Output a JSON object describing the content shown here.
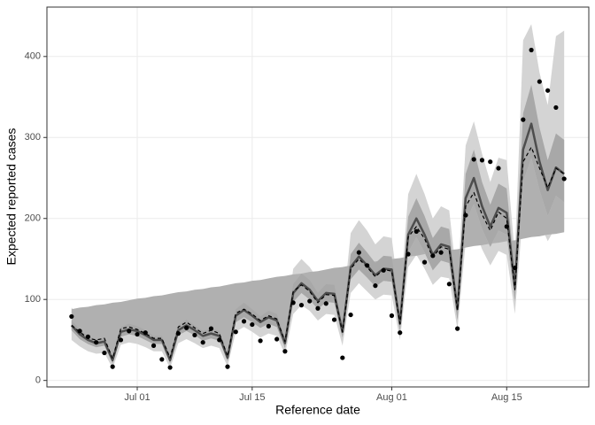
{
  "chart_data": {
    "type": "line",
    "x_label": "Reference date",
    "y_label": "Expected reported cases",
    "x": [
      "06-23",
      "06-24",
      "06-25",
      "06-26",
      "06-27",
      "06-28",
      "06-29",
      "06-30",
      "07-01",
      "07-02",
      "07-03",
      "07-04",
      "07-05",
      "07-06",
      "07-07",
      "07-08",
      "07-09",
      "07-10",
      "07-11",
      "07-12",
      "07-13",
      "07-14",
      "07-15",
      "07-16",
      "07-17",
      "07-18",
      "07-19",
      "07-20",
      "07-21",
      "07-22",
      "07-23",
      "07-24",
      "07-25",
      "07-26",
      "07-27",
      "07-28",
      "07-29",
      "07-30",
      "07-31",
      "08-01",
      "08-02",
      "08-03",
      "08-04",
      "08-05",
      "08-06",
      "08-07",
      "08-08",
      "08-09",
      "08-10",
      "08-11",
      "08-12",
      "08-13",
      "08-14",
      "08-15",
      "08-16",
      "08-17",
      "08-18",
      "08-19",
      "08-20",
      "08-21",
      "08-22"
    ],
    "xlim": [
      "06-20",
      "08-25"
    ],
    "xticks": [
      {
        "value": "07-01",
        "label": "Jul 01"
      },
      {
        "value": "07-15",
        "label": "Jul 15"
      },
      {
        "value": "08-01",
        "label": "Aug 01"
      },
      {
        "value": "08-15",
        "label": "Aug 15"
      }
    ],
    "ylim": [
      -8,
      461
    ],
    "yticks": [
      0,
      100,
      200,
      300,
      400
    ],
    "grid": true,
    "bands": [
      {
        "color": "#d4d4d4",
        "lower": [
          50,
          42,
          36,
          33,
          34,
          15,
          44,
          47,
          45,
          41,
          36,
          36,
          15,
          46,
          51,
          46,
          40,
          43,
          40,
          17,
          60,
          66,
          60,
          53,
          58,
          55,
          32,
          82,
          93,
          86,
          74,
          82,
          81,
          43,
          108,
          120,
          110,
          100,
          106,
          105,
          50,
          140,
          155,
          138,
          118,
          128,
          126,
          63,
          170,
          190,
          162,
          142,
          160,
          155,
          82,
          210,
          230,
          195,
          172,
          190,
          185
        ],
        "upper": [
          90,
          78,
          68,
          64,
          66,
          38,
          80,
          84,
          80,
          74,
          67,
          67,
          38,
          82,
          88,
          82,
          74,
          78,
          74,
          42,
          104,
          112,
          104,
          95,
          102,
          97,
          65,
          138,
          150,
          140,
          125,
          136,
          134,
          82,
          182,
          198,
          185,
          168,
          178,
          176,
          95,
          230,
          255,
          230,
          200,
          215,
          210,
          118,
          290,
          320,
          280,
          245,
          275,
          272,
          155,
          420,
          440,
          380,
          340,
          425,
          432
        ]
      },
      {
        "color": "#a8a8a8",
        "lower": [
          62,
          51,
          45,
          41,
          43,
          21,
          54,
          57,
          55,
          50,
          45,
          45,
          21,
          56,
          61,
          56,
          49,
          52,
          49,
          24,
          72,
          78,
          72,
          65,
          70,
          66,
          40,
          97,
          108,
          100,
          88,
          97,
          96,
          53,
          125,
          137,
          127,
          116,
          123,
          122,
          61,
          158,
          177,
          158,
          136,
          148,
          145,
          75,
          196,
          218,
          187,
          165,
          185,
          180,
          98,
          245,
          275,
          235,
          203,
          228,
          220
        ],
        "upper": [
          74,
          63,
          55,
          51,
          53,
          29,
          66,
          70,
          67,
          62,
          55,
          55,
          29,
          68,
          75,
          68,
          61,
          64,
          61,
          32,
          88,
          96,
          88,
          79,
          86,
          82,
          52,
          119,
          132,
          124,
          108,
          119,
          118,
          67,
          156,
          170,
          158,
          145,
          154,
          153,
          79,
          202,
          225,
          203,
          176,
          190,
          187,
          100,
          255,
          285,
          245,
          217,
          243,
          237,
          132,
          330,
          365,
          312,
          272,
          305,
          297
        ]
      }
    ],
    "trend": {
      "color": "#b0b0b0",
      "values": [
        88,
        90,
        91,
        93,
        94,
        96,
        97,
        99,
        101,
        102,
        104,
        105,
        107,
        109,
        110,
        112,
        113,
        115,
        116,
        118,
        120,
        121,
        123,
        124,
        126,
        128,
        129,
        131,
        132,
        134,
        135,
        137,
        139,
        140,
        142,
        143,
        145,
        147,
        148,
        150,
        151,
        153,
        154,
        156,
        158,
        159,
        161,
        162,
        164,
        166,
        167,
        169,
        170,
        172,
        173,
        175,
        177,
        178,
        180,
        181,
        183
      ]
    },
    "series": [
      {
        "style": "solid",
        "color": "#4d4d4d",
        "values": [
          68,
          57,
          50,
          46,
          48,
          25,
          60,
          63,
          61,
          56,
          50,
          50,
          25,
          62,
          68,
          62,
          55,
          58,
          55,
          28,
          80,
          87,
          80,
          72,
          78,
          74,
          46,
          108,
          120,
          112,
          98,
          108,
          107,
          60,
          140,
          153,
          142,
          130,
          138,
          137,
          70,
          180,
          200,
          180,
          155,
          168,
          165,
          88,
          225,
          250,
          215,
          190,
          213,
          207,
          115,
          285,
          317,
          270,
          235,
          263,
          255
        ]
      },
      {
        "style": "dashed",
        "color": "#000000",
        "values": [
          68,
          60,
          52,
          50,
          52,
          27,
          64,
          66,
          63,
          58,
          52,
          52,
          28,
          66,
          72,
          65,
          58,
          62,
          58,
          30,
          83,
          88,
          82,
          74,
          80,
          76,
          48,
          110,
          118,
          110,
          96,
          106,
          105,
          60,
          138,
          150,
          140,
          128,
          137,
          135,
          70,
          177,
          190,
          175,
          152,
          165,
          162,
          87,
          215,
          232,
          205,
          185,
          208,
          200,
          112,
          270,
          288,
          262,
          238,
          262,
          255
        ]
      },
      {
        "style": "points",
        "color": "#000000",
        "values": [
          79,
          61,
          54,
          47,
          34,
          17,
          50,
          61,
          57,
          59,
          43,
          26,
          16,
          58,
          65,
          56,
          47,
          64,
          50,
          17,
          60,
          73,
          69,
          49,
          67,
          51,
          36,
          96,
          93,
          98,
          89,
          95,
          75,
          28,
          81,
          158,
          142,
          117,
          136,
          80,
          59,
          156,
          184,
          146,
          154,
          158,
          119,
          64,
          204,
          273,
          272,
          270,
          262,
          190,
          139,
          322,
          408,
          369,
          358,
          337,
          249
        ]
      }
    ]
  }
}
